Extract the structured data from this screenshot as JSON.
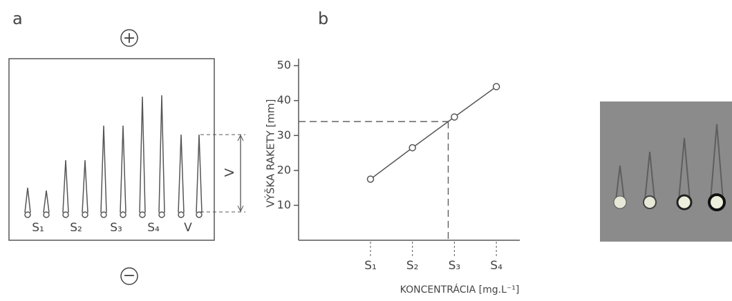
{
  "panel_a": {
    "label": "a",
    "plus": "+",
    "minus": "−",
    "samples": [
      "S₁",
      "S₂",
      "S₃",
      "S₄",
      "V"
    ],
    "height_label": "V"
  },
  "chart_data": {
    "type": "line",
    "panel_label": "b",
    "y_label": "VÝŠKA RAKETY [mm]",
    "x_label": "KONCENTRÁCIA [mg.L⁻¹]",
    "categories": [
      "S₁",
      "S₂",
      "S₃",
      "S₄"
    ],
    "values": [
      17.5,
      26.5,
      35.3,
      44
    ],
    "color": "#555555",
    "ylim": [
      0,
      52
    ],
    "yticks": [
      10,
      20,
      30,
      40,
      50
    ],
    "reference_y": 34
  }
}
